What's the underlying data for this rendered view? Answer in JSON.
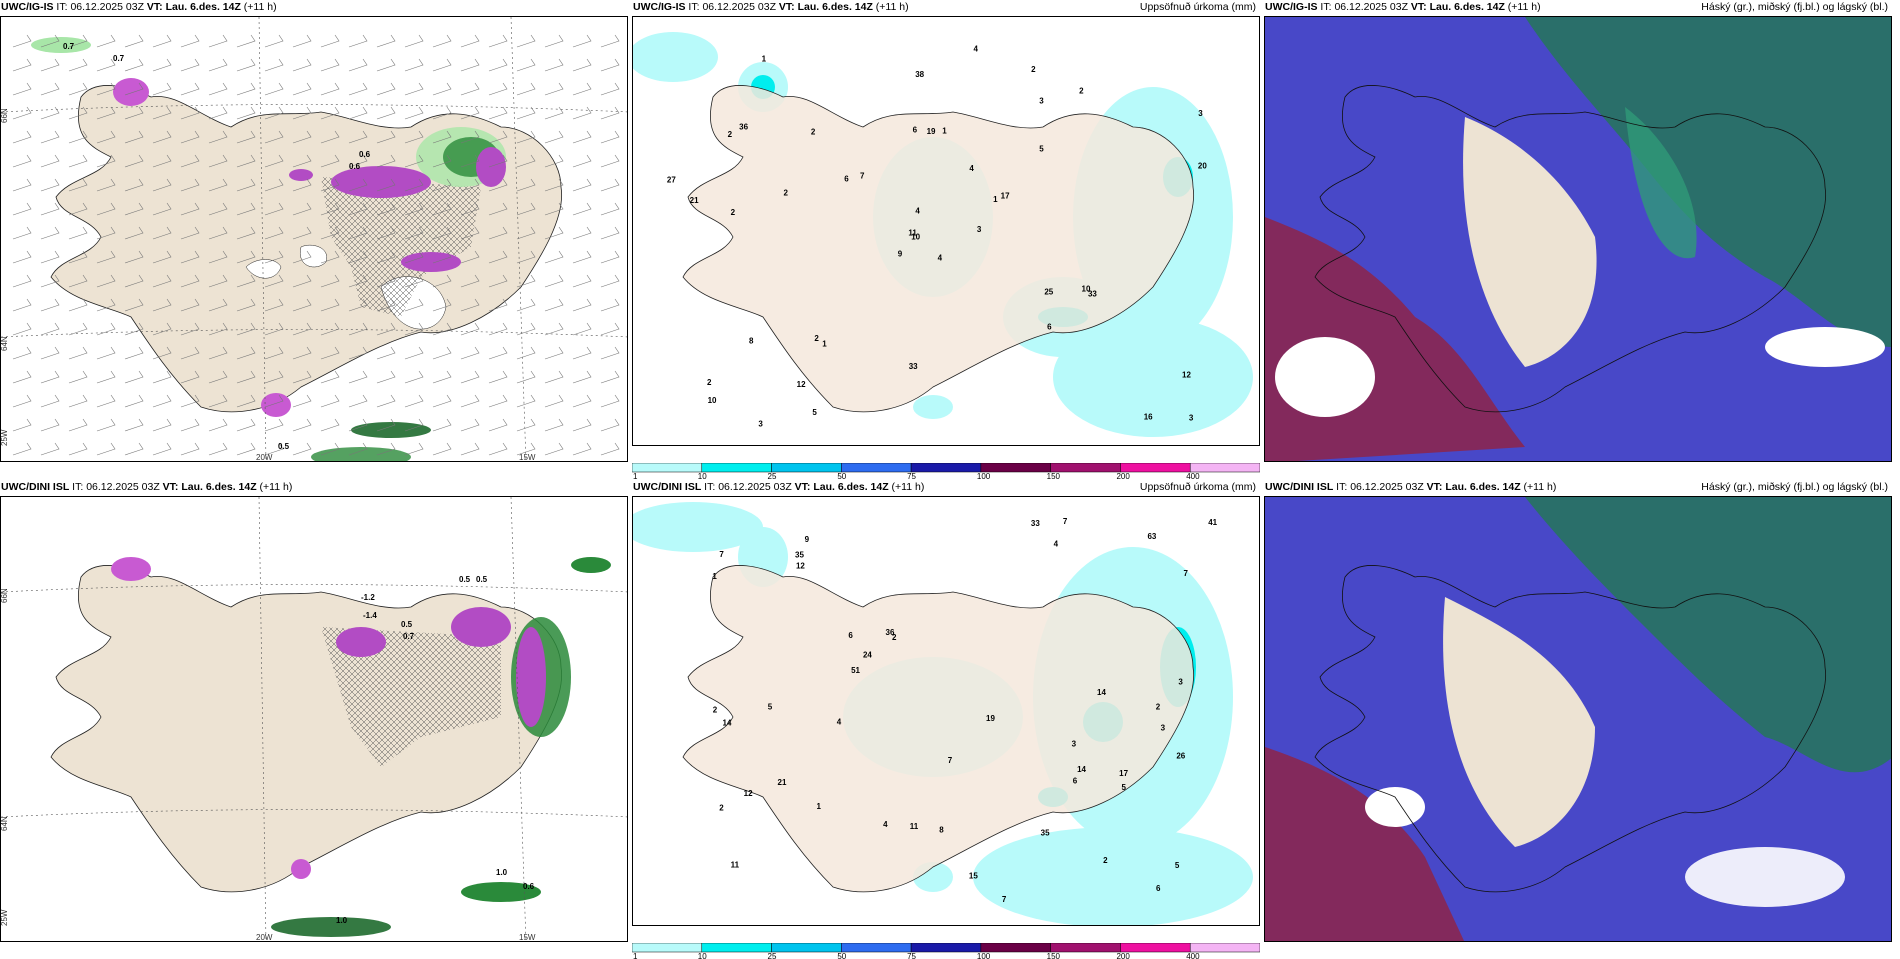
{
  "rows": [
    {
      "model": "UWC/IG-IS",
      "it_label": "IT:",
      "it": "06.12.2025 03Z",
      "vt_label": "VT:",
      "vt": "Lau. 6.des. 14Z",
      "lead": "(+11 h)"
    },
    {
      "model": "UWC/DINI ISL",
      "it_label": "IT:",
      "it": "06.12.2025 03Z",
      "vt_label": "VT:",
      "vt": "Lau. 6.des. 14Z",
      "lead": "(+11 h)"
    }
  ],
  "panel_titles": {
    "precip": "Uppsöfnuð úrkoma (mm)",
    "clouds": "Háský (gr.), miðský (fj.bl.) og lágský (bl.)"
  },
  "colorbar": {
    "ticks": [
      "1",
      "10",
      "25",
      "50",
      "75",
      "100",
      "150",
      "200",
      "400"
    ],
    "colors": [
      "#b8fafa",
      "#00eeee",
      "#00c4ee",
      "#2e6cf0",
      "#1a1aa8",
      "#6a0046",
      "#a0106e",
      "#ee10a0",
      "#f4b4f4"
    ]
  },
  "axes": {
    "lat66": "66N",
    "lat64": "64N",
    "lon20": "20W",
    "lon15": "15W",
    "lon25": "25W"
  },
  "top_left_values": [
    "0.7",
    "0.7",
    "0.6",
    "0.6",
    "0.5"
  ],
  "bottom_left_values": [
    "-1.2",
    "-1.4",
    "0.5",
    "0.7",
    "0.5",
    "0.5",
    "1.0",
    "0.6",
    "1.0"
  ],
  "top_precip_values": [
    "4",
    "2",
    "10",
    "2",
    "1",
    "1",
    "2",
    "1",
    "3",
    "3",
    "1",
    "3",
    "2",
    "3",
    "9",
    "5",
    "3",
    "6",
    "4",
    "8",
    "7",
    "10",
    "12",
    "19",
    "17",
    "33",
    "36",
    "38",
    "21",
    "25",
    "20",
    "11",
    "33",
    "4",
    "2",
    "2",
    "2",
    "16",
    "12",
    "10",
    "4",
    "6",
    "2",
    "6",
    "5",
    "27"
  ],
  "bottom_precip_values": [
    "3",
    "3",
    "11",
    "9",
    "2",
    "2",
    "2",
    "4",
    "6",
    "7",
    "1",
    "2",
    "7",
    "5",
    "4",
    "3",
    "7",
    "19",
    "36",
    "21",
    "41",
    "63",
    "51",
    "26",
    "33",
    "35",
    "14",
    "14",
    "12",
    "14",
    "15",
    "35",
    "24",
    "4",
    "2",
    "5",
    "6",
    "5",
    "8",
    "12",
    "7",
    "7",
    "6",
    "11",
    "17",
    "1"
  ],
  "cloud_colors": {
    "high": "#ad4260",
    "mid": "#2f9a78",
    "low": "#5c5cd6"
  }
}
